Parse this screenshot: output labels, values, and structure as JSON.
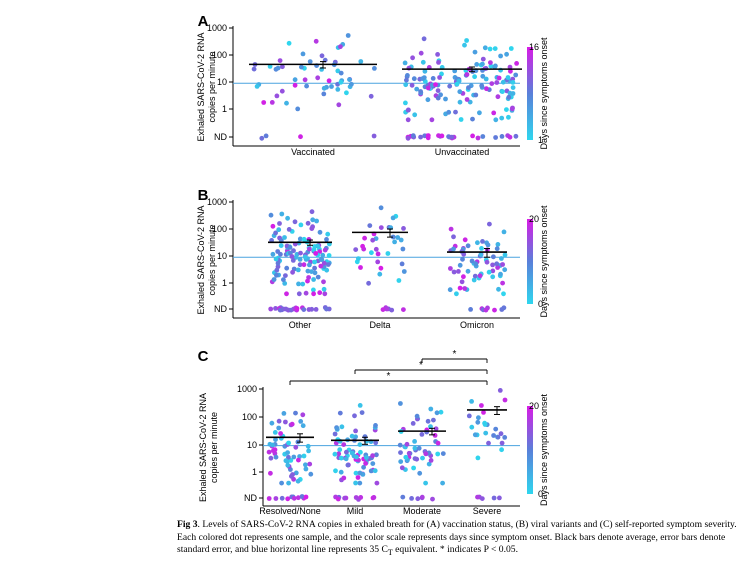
{
  "figure": {
    "caption_label": "Fig 3",
    "caption_text": ". Levels of SARS-CoV-2 RNA copies in exhaled breath for (A) vaccination status, (B) viral variants and (C) self-reported symptom severity. Each colored dot represents one sample, and the color scale represents days since symptom onset. Black bars denote average, error bars denote standard error, and blue horizontal line represents 35 C",
    "caption_sub": "T",
    "caption_tail": " equivalent. * indicates P < 0.05.",
    "colors": {
      "low": "#2fd6ee",
      "mid": "#5a80d9",
      "high": "#d81ce6",
      "threshold_line": "#4aa3df",
      "mean_bar": "#000000"
    }
  },
  "chart_data": [
    {
      "panel": "A",
      "type": "scatter",
      "ylabel": "Exhaled SARS-CoV-2 RNA copies per minute",
      "yscale": "log",
      "y_ticks": [
        "1000",
        "100",
        "10",
        "1",
        "ND"
      ],
      "categories": [
        "Vaccinated",
        "Unvaccinated"
      ],
      "means": [
        45,
        30
      ],
      "sem": [
        12,
        6
      ],
      "threshold": 9,
      "colorbar": {
        "label": "Days since symptoms onset",
        "min": 1,
        "max": 16
      },
      "n_points": [
        60,
        170
      ]
    },
    {
      "panel": "B",
      "type": "scatter",
      "ylabel": "Exhaled SARS-CoV-2 RNA copies per minute",
      "yscale": "log",
      "y_ticks": [
        "1000",
        "100",
        "10",
        "1",
        "ND"
      ],
      "categories": [
        "Other",
        "Delta",
        "Omicron"
      ],
      "means": [
        32,
        75,
        14
      ],
      "sem": [
        7,
        25,
        5
      ],
      "threshold": 9,
      "colorbar": {
        "label": "Days since symptoms onset",
        "min": 0,
        "max": 20
      },
      "n_points": [
        150,
        40,
        75
      ]
    },
    {
      "panel": "C",
      "type": "scatter",
      "ylabel": "Exhaled SARS-CoV-2 RNA copies per minute",
      "yscale": "log",
      "y_ticks": [
        "1000",
        "100",
        "10",
        "1",
        "ND"
      ],
      "categories": [
        "Resolved/None",
        "Mild",
        "Moderate",
        "Severe"
      ],
      "means": [
        18,
        14,
        30,
        175
      ],
      "sem": [
        6,
        4,
        8,
        55
      ],
      "threshold": 9,
      "colorbar": {
        "label": "Days since symptoms onset",
        "min": 0,
        "max": 20
      },
      "n_points": [
        70,
        85,
        60,
        30
      ],
      "significance": [
        {
          "from": "Resolved/None",
          "to": "Severe",
          "label": "*"
        },
        {
          "from": "Mild",
          "to": "Severe",
          "label": "*"
        },
        {
          "from": "Moderate",
          "to": "Severe",
          "label": "*"
        }
      ]
    }
  ]
}
